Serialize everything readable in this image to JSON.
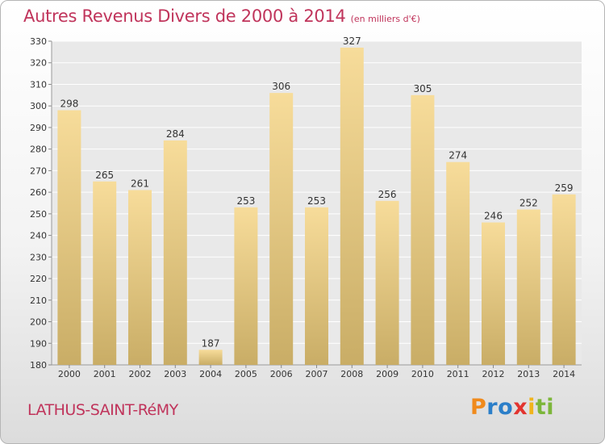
{
  "title": "Autres Revenus Divers de 2000 à 2014",
  "subtitle": "(en milliers d'€)",
  "location": "LATHUS-SAINT-RéMY",
  "brand": {
    "letters": [
      "P",
      "r",
      "o",
      "x",
      "i",
      "t",
      "i"
    ],
    "colors": [
      "#f08a1c",
      "#2c7fc9",
      "#2c7fc9",
      "#e2342f",
      "#f0b41c",
      "#7cb63a",
      "#7cb63a"
    ]
  },
  "colors": {
    "title": "#c0345b",
    "bar_light": "#f7dc9a",
    "bar_dark": "#c9ad66",
    "grid": "#ffffff",
    "plot_bg": "#e9e9e9"
  },
  "chart_data": {
    "type": "bar",
    "categories": [
      "2000",
      "2001",
      "2002",
      "2003",
      "2004",
      "2005",
      "2006",
      "2007",
      "2008",
      "2009",
      "2010",
      "2011",
      "2012",
      "2013",
      "2014"
    ],
    "values": [
      298,
      265,
      261,
      284,
      187,
      253,
      306,
      253,
      327,
      256,
      305,
      274,
      246,
      252,
      259
    ],
    "ylim": [
      180,
      330
    ],
    "yticks": [
      180,
      190,
      200,
      210,
      220,
      230,
      240,
      250,
      260,
      270,
      280,
      290,
      300,
      310,
      320,
      330
    ],
    "grid": true,
    "xlabel": "",
    "ylabel": ""
  }
}
